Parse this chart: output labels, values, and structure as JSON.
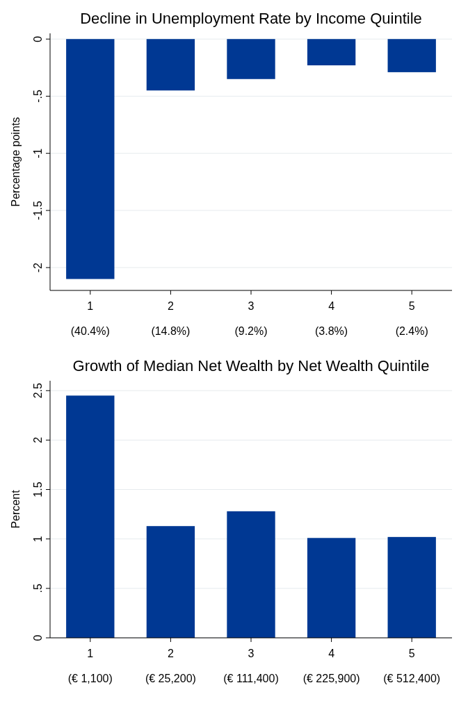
{
  "chart_data": [
    {
      "type": "bar",
      "title": "Decline in Unemployment Rate by Income Quintile",
      "ylabel": "Percentage points",
      "categories": [
        "1\n(40.4%)",
        "2\n(14.8%)",
        "3\n(9.2%)",
        "4\n(3.8%)",
        "5\n(2.4%)"
      ],
      "values": [
        -2.1,
        -0.45,
        -0.35,
        -0.23,
        -0.29
      ],
      "color": "#003893",
      "ylim": [
        -2.2,
        0.05
      ],
      "yticks": [
        {
          "value": 0,
          "label": "0"
        },
        {
          "value": -0.5,
          "label": "-.5"
        },
        {
          "value": -1,
          "label": "-1"
        },
        {
          "value": -1.5,
          "label": "-1.5"
        },
        {
          "value": -2,
          "label": "-2"
        }
      ],
      "grid": "y"
    },
    {
      "type": "bar",
      "title": "Growth of Median Net Wealth by Net Wealth Quintile",
      "ylabel": "Percent",
      "categories": [
        "1\n(€ 1,100)",
        "2\n(€ 25,200)",
        "3\n(€ 111,400)",
        "4\n(€ 225,900)",
        "5\n(€ 512,400)"
      ],
      "values": [
        2.45,
        1.13,
        1.28,
        1.01,
        1.02
      ],
      "color": "#003893",
      "ylim": [
        0,
        2.6
      ],
      "yticks": [
        {
          "value": 0,
          "label": "0"
        },
        {
          "value": 0.5,
          "label": ".5"
        },
        {
          "value": 1,
          "label": "1"
        },
        {
          "value": 1.5,
          "label": "1.5"
        },
        {
          "value": 2,
          "label": "2"
        },
        {
          "value": 2.5,
          "label": "2.5"
        }
      ],
      "grid": "y"
    }
  ]
}
